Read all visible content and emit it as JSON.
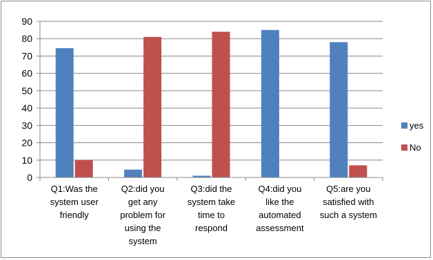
{
  "chart_data": {
    "type": "bar",
    "categories": [
      [
        "Q1:Was the",
        "system user",
        "friendly"
      ],
      [
        "Q2:did you",
        "get any",
        "problem for",
        "using the",
        "system"
      ],
      [
        "Q3:did the",
        "system take",
        "time to",
        "respond"
      ],
      [
        "Q4:did you",
        "like the",
        "automated",
        "assessment"
      ],
      [
        "Q5:are you",
        "satisfied with",
        "such a system"
      ]
    ],
    "series": [
      {
        "name": "yes",
        "color": "#4f81bd",
        "values": [
          74.5,
          4.5,
          1,
          85,
          78
        ]
      },
      {
        "name": "No",
        "color": "#c0504d",
        "values": [
          10,
          81,
          84,
          0,
          7
        ]
      }
    ],
    "ylim": [
      0,
      90
    ],
    "yticks": [
      "0",
      "10",
      "20",
      "30",
      "40",
      "50",
      "60",
      "70",
      "80",
      "90"
    ],
    "grid": true,
    "legend": "right",
    "title": "",
    "xlabel": "",
    "ylabel": ""
  }
}
